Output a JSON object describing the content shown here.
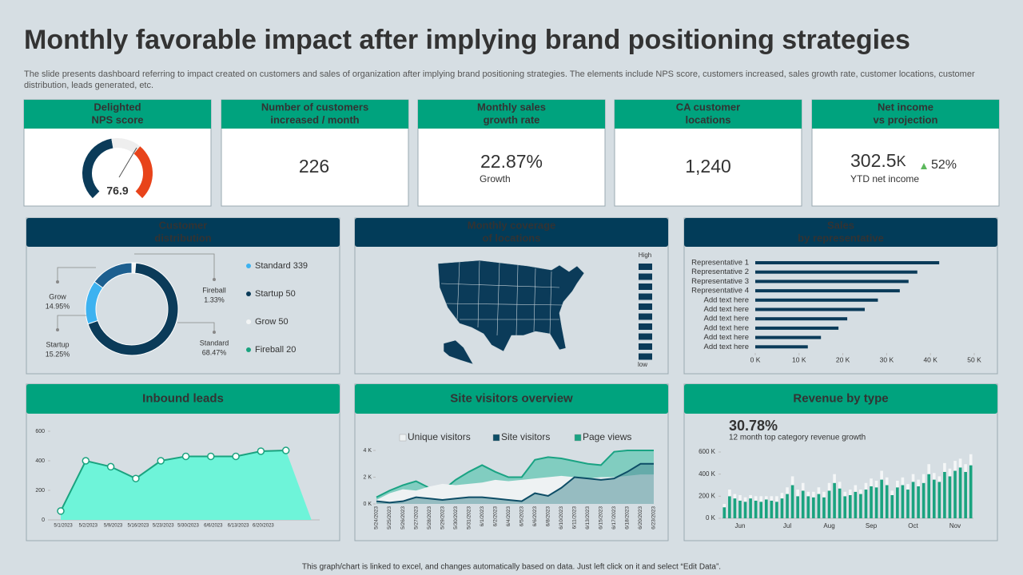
{
  "title": "Monthly favorable impact after implying brand positioning strategies",
  "subtitle": "The slide presents dashboard referring to impact created on customers and sales of organization after implying brand positioning strategies. The elements include NPS score, customers increased, sales growth rate, customer locations, customer distribution, leads generated, etc.",
  "kpis": [
    {
      "header": [
        "Delighted",
        "NPS score"
      ],
      "value": "76.9"
    },
    {
      "header": [
        "Number of customers",
        "increased / month"
      ],
      "value": "226"
    },
    {
      "header": [
        "Monthly sales",
        "growth rate"
      ],
      "value": "22.87%",
      "note": "Growth"
    },
    {
      "header": [
        "CA customer",
        "locations"
      ],
      "value": "1,240"
    },
    {
      "header": [
        "Net income",
        "vs projection"
      ],
      "value": "302.5",
      "unit": "K",
      "change": "52%",
      "note": "YTD net income"
    }
  ],
  "map": {
    "title": [
      "Monthly coverage",
      "of locations"
    ],
    "legend": [
      "High",
      "low"
    ]
  },
  "chart_data": [
    {
      "type": "donut",
      "title": [
        "Customer",
        "distribution"
      ],
      "categories": [
        "Fireball",
        "Standard",
        "Startup",
        "Grow"
      ],
      "values": [
        1.33,
        68.47,
        15.25,
        14.95
      ],
      "value_labels": [
        "1.33%",
        "68.47%",
        "15.25%",
        "14.95%"
      ],
      "colors": [
        "#f2f4f5",
        "#0b3b59",
        "#3db2f0",
        "#1d5f8f"
      ],
      "legend": [
        "Standard 339",
        "Startup 50",
        "Grow 50",
        "Fireball 20"
      ],
      "legend_colors": [
        "#3db2f0",
        "#0b3b59",
        "#f2f4f5",
        "#1aa37f"
      ]
    },
    {
      "type": "hbar",
      "title": [
        "Sales",
        "by representative"
      ],
      "categories": [
        "Representative 1",
        "Representative 2",
        "Representative 3",
        "Representative 4",
        "Add text here",
        "Add text here",
        "Add text here",
        "Add text here",
        "Add text here",
        "Add text here"
      ],
      "values": [
        42,
        37,
        35,
        33,
        28,
        25,
        21,
        19,
        15,
        12
      ],
      "color": "#0b3b59",
      "xlim": [
        0,
        50
      ],
      "xticks": [
        {
          "value": 0,
          "label": "0 K"
        },
        {
          "value": 10,
          "label": "10 K"
        },
        {
          "value": 20,
          "label": "20 K"
        },
        {
          "value": 30,
          "label": "30 K"
        },
        {
          "value": 40,
          "label": "40 K"
        },
        {
          "value": 50,
          "label": "50 K"
        }
      ]
    },
    {
      "type": "area",
      "title": "Inbound leads",
      "categories": [
        "5/1/2023",
        "5/2/2023",
        "5/9/2023",
        "5/16/2023",
        "5/23/2023",
        "5/30/2023",
        "6/6/2023",
        "6/13/2023",
        "6/20/2023",
        null
      ],
      "values": [
        60,
        400,
        360,
        280,
        400,
        430,
        430,
        430,
        465,
        470
      ],
      "color": "#1aa37f",
      "fill": "#6ef4d9",
      "ylim": [
        0,
        600
      ],
      "yticks": [
        0,
        200,
        400,
        600
      ]
    },
    {
      "type": "multiarea",
      "title": "Site visitors overview",
      "categories": [
        "5/24/2023",
        "5/25/2023",
        "5/26/2023",
        "5/27/2023",
        "5/28/2023",
        "5/29/2023",
        "5/30/2023",
        "5/31/2023",
        "6/1/2023",
        "6/2/2023",
        "6/4/2023",
        "6/5/2023",
        "6/6/2023",
        "6/8/2023",
        "6/10/2023",
        "6/11/2023",
        "6/13/2023",
        "6/15/2023",
        "6/17/2023",
        "6/18/2023",
        "6/20/2023",
        "6/23/2023"
      ],
      "series": [
        {
          "name": "Unique visitors",
          "color": "#eef2f3",
          "values": [
            0.3,
            0.8,
            1.1,
            1.0,
            1.3,
            1.5,
            1.4,
            1.5,
            1.6,
            1.8,
            1.7,
            1.8,
            1.9,
            2.0,
            2.1,
            2.0,
            1.9,
            2.0,
            2.0,
            2.1,
            2.2,
            2.2
          ]
        },
        {
          "name": "Site visitors",
          "color": "#0d4d66",
          "values": [
            0.2,
            0.1,
            0.2,
            0.5,
            0.4,
            0.3,
            0.4,
            0.5,
            0.5,
            0.4,
            0.3,
            0.2,
            0.8,
            0.6,
            1.2,
            2.0,
            1.9,
            1.8,
            1.9,
            2.4,
            3.0,
            3.0
          ]
        },
        {
          "name": "Page views",
          "color": "#1aa383",
          "values": [
            0.5,
            1.0,
            1.4,
            1.7,
            1.2,
            1.0,
            1.8,
            2.4,
            2.9,
            2.4,
            2.0,
            2.0,
            3.3,
            3.5,
            3.4,
            3.2,
            3.0,
            2.9,
            3.9,
            4.0,
            4.0,
            4.0
          ]
        }
      ],
      "ylim": [
        0,
        4
      ],
      "yticks": [
        {
          "value": 0,
          "label": "0 K"
        },
        {
          "value": 2,
          "label": "2 K"
        },
        {
          "value": 4,
          "label": "4 K"
        }
      ]
    },
    {
      "type": "stacked_bar",
      "title": "Revenue by type",
      "headline": "30.78%",
      "subheadline": "12 month top category revenue growth",
      "categories": [
        null,
        null,
        null,
        "Jun",
        null,
        null,
        null,
        null,
        null,
        null,
        null,
        null,
        "Jul",
        null,
        null,
        null,
        null,
        null,
        null,
        null,
        "Aug",
        null,
        null,
        null,
        null,
        null,
        null,
        null,
        "Sep",
        null,
        null,
        null,
        null,
        null,
        null,
        null,
        "Oct",
        null,
        null,
        null,
        null,
        null,
        null,
        null,
        "Nov",
        null,
        null,
        null
      ],
      "series": [
        {
          "color": "#1aa37f",
          "values": [
            100,
            200,
            180,
            160,
            150,
            180,
            160,
            150,
            170,
            160,
            150,
            180,
            220,
            300,
            200,
            250,
            200,
            190,
            220,
            190,
            250,
            320,
            270,
            200,
            210,
            240,
            220,
            260,
            290,
            280,
            350,
            300,
            210,
            280,
            300,
            260,
            330,
            290,
            320,
            400,
            350,
            330,
            420,
            380,
            430,
            460,
            420,
            480
          ]
        },
        {
          "color": "#f4f6f7",
          "values": [
            30,
            60,
            40,
            50,
            40,
            30,
            40,
            50,
            30,
            40,
            50,
            50,
            60,
            80,
            60,
            70,
            40,
            50,
            60,
            50,
            70,
            80,
            60,
            40,
            50,
            60,
            40,
            60,
            70,
            60,
            80,
            70,
            40,
            60,
            70,
            50,
            70,
            60,
            80,
            90,
            60,
            50,
            80,
            70,
            90,
            80,
            70,
            100
          ]
        }
      ],
      "ylim": [
        0,
        600
      ],
      "yticks": [
        {
          "value": 0,
          "label": "0 K"
        },
        {
          "value": 200,
          "label": "200 K"
        },
        {
          "value": 400,
          "label": "400 K"
        },
        {
          "value": 600,
          "label": "600 K"
        }
      ]
    }
  ],
  "footer": "This graph/chart is linked to excel, and changes automatically based on data. Just left click on it and select “Edit Data”."
}
